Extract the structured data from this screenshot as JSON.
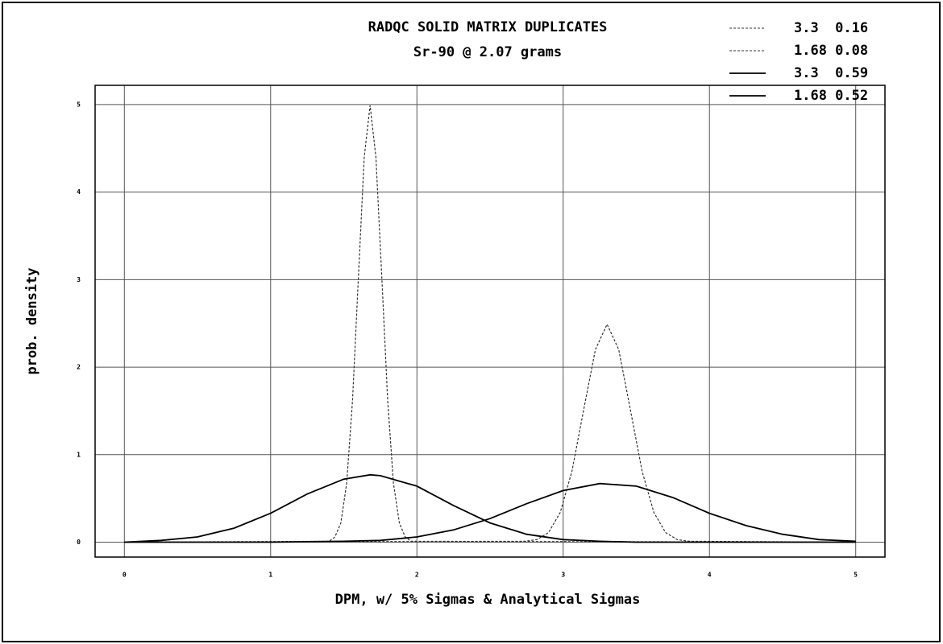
{
  "chart_data": {
    "type": "line",
    "title": "RADQC SOLID MATRIX DUPLICATES",
    "subtitle": "Sr-90 @ 2.07 grams",
    "x_label": "DPM, w/ 5% Sigmas & Analytical Sigmas",
    "y_label": "prob. density",
    "xlim": [
      -0.2,
      5.2
    ],
    "ylim": [
      -0.17,
      5.22
    ],
    "xticks": [
      0,
      1,
      2,
      3,
      4,
      5
    ],
    "yticks": [
      0,
      1,
      2,
      3,
      4,
      5
    ],
    "grid": true,
    "legend": "top-right",
    "series": [
      {
        "name": "3.3  0.16",
        "color": "#333",
        "dashed": true,
        "x": [
          0,
          2.74,
          2.82,
          2.9,
          2.98,
          3.06,
          3.14,
          3.22,
          3.3,
          3.38,
          3.46,
          3.54,
          3.62,
          3.7,
          3.78,
          3.86,
          5
        ],
        "values": [
          0,
          0.01,
          0.03,
          0.11,
          0.34,
          0.81,
          1.51,
          2.2,
          2.49,
          2.2,
          1.51,
          0.81,
          0.34,
          0.11,
          0.03,
          0.01,
          0
        ]
      },
      {
        "name": "1.68 0.08",
        "color": "#333",
        "dashed": true,
        "x": [
          0,
          1.4,
          1.44,
          1.48,
          1.52,
          1.56,
          1.6,
          1.64,
          1.68,
          1.72,
          1.76,
          1.8,
          1.84,
          1.88,
          1.92,
          1.96,
          5
        ],
        "values": [
          0,
          0.01,
          0.06,
          0.22,
          0.67,
          1.62,
          3.03,
          4.4,
          4.99,
          4.4,
          3.03,
          1.62,
          0.67,
          0.22,
          0.06,
          0.01,
          0
        ]
      },
      {
        "name": "3.3  0.59",
        "color": "#000",
        "dashed": false,
        "x": [
          0,
          1,
          1.5,
          1.75,
          2,
          2.25,
          2.5,
          2.75,
          3,
          3.25,
          3.5,
          3.75,
          4,
          4.25,
          4.5,
          4.75,
          5
        ],
        "values": [
          0,
          0,
          0.01,
          0.02,
          0.06,
          0.14,
          0.27,
          0.44,
          0.59,
          0.67,
          0.64,
          0.51,
          0.33,
          0.19,
          0.09,
          0.03,
          0.01
        ]
      },
      {
        "name": "1.68 0.52",
        "color": "#000",
        "dashed": false,
        "x": [
          0,
          0.25,
          0.5,
          0.75,
          1,
          1.25,
          1.5,
          1.68,
          1.75,
          2,
          2.25,
          2.5,
          2.75,
          3,
          3.25,
          3.5,
          5
        ],
        "values": [
          0,
          0.02,
          0.06,
          0.16,
          0.33,
          0.55,
          0.72,
          0.77,
          0.76,
          0.64,
          0.42,
          0.22,
          0.09,
          0.03,
          0.01,
          0,
          0
        ]
      }
    ]
  }
}
